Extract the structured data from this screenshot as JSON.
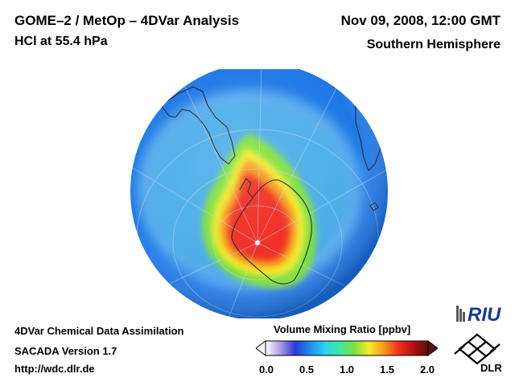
{
  "header": {
    "title": "GOME–2 / MetOp – 4DVar Analysis",
    "subtitle": "HCl at 55.4 hPa",
    "date": "Nov 09, 2008, 12:00 GMT",
    "hemisphere": "Southern Hemisphere"
  },
  "footer": {
    "line1": "4DVar Chemical Data Assimilation",
    "line2": "SACADA Version 1.7",
    "line3": "http://wdc.dlr.de"
  },
  "colorbar": {
    "label": "Volume Mixing Ratio [ppbv]",
    "ticks": [
      "0.0",
      "0.5",
      "1.0",
      "1.5",
      "2.0"
    ],
    "min": 0.0,
    "max": 2.0,
    "colors": [
      "#ffffff",
      "#b09ce0",
      "#2a3ad8",
      "#1e8cf0",
      "#2ad0f0",
      "#40e8a0",
      "#7ee040",
      "#f4ec2a",
      "#f89a1c",
      "#f23020",
      "#b01010",
      "#5a1010"
    ]
  },
  "logos": {
    "riu": "RIU",
    "dlr": "DLR"
  },
  "map": {
    "projection": "orthographic, south pole centered",
    "ocean_color": "#1e78e6",
    "background_field": "#4aaee8",
    "collar_color": "#8ed8f4",
    "vortex_core_color": "#f02a22"
  }
}
